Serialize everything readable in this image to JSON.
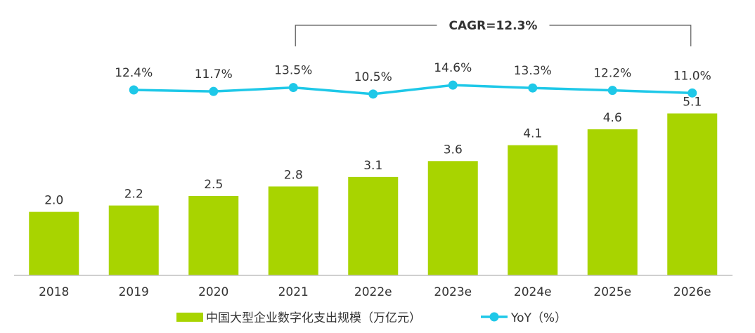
{
  "chart_data": {
    "type": "bar",
    "categories": [
      "2018",
      "2019",
      "2020",
      "2021",
      "2022e",
      "2023e",
      "2024e",
      "2025e",
      "2026e"
    ],
    "series": [
      {
        "name": "中国大型企业数字化支出规模（万亿元）",
        "type": "bar",
        "values": [
          2.0,
          2.2,
          2.5,
          2.8,
          3.1,
          3.6,
          4.1,
          4.6,
          5.1
        ],
        "labels": [
          "2.0",
          "2.2",
          "2.5",
          "2.8",
          "3.1",
          "3.6",
          "4.1",
          "4.6",
          "5.1"
        ],
        "color": "#a8d400"
      },
      {
        "name": "YoY（%）",
        "type": "line",
        "values": [
          null,
          12.4,
          11.7,
          13.5,
          10.5,
          14.6,
          13.3,
          12.2,
          11.0
        ],
        "labels": [
          "",
          "12.4%",
          "11.7%",
          "13.5%",
          "10.5%",
          "14.6%",
          "13.3%",
          "12.2%",
          "11.0%"
        ],
        "color": "#1ec8e8"
      }
    ],
    "annotation": {
      "text": "CAGR=12.3%",
      "from": "2021",
      "to": "2026e"
    },
    "ylim": [
      0,
      5.5
    ],
    "grid": false,
    "legend_position": "bottom"
  }
}
